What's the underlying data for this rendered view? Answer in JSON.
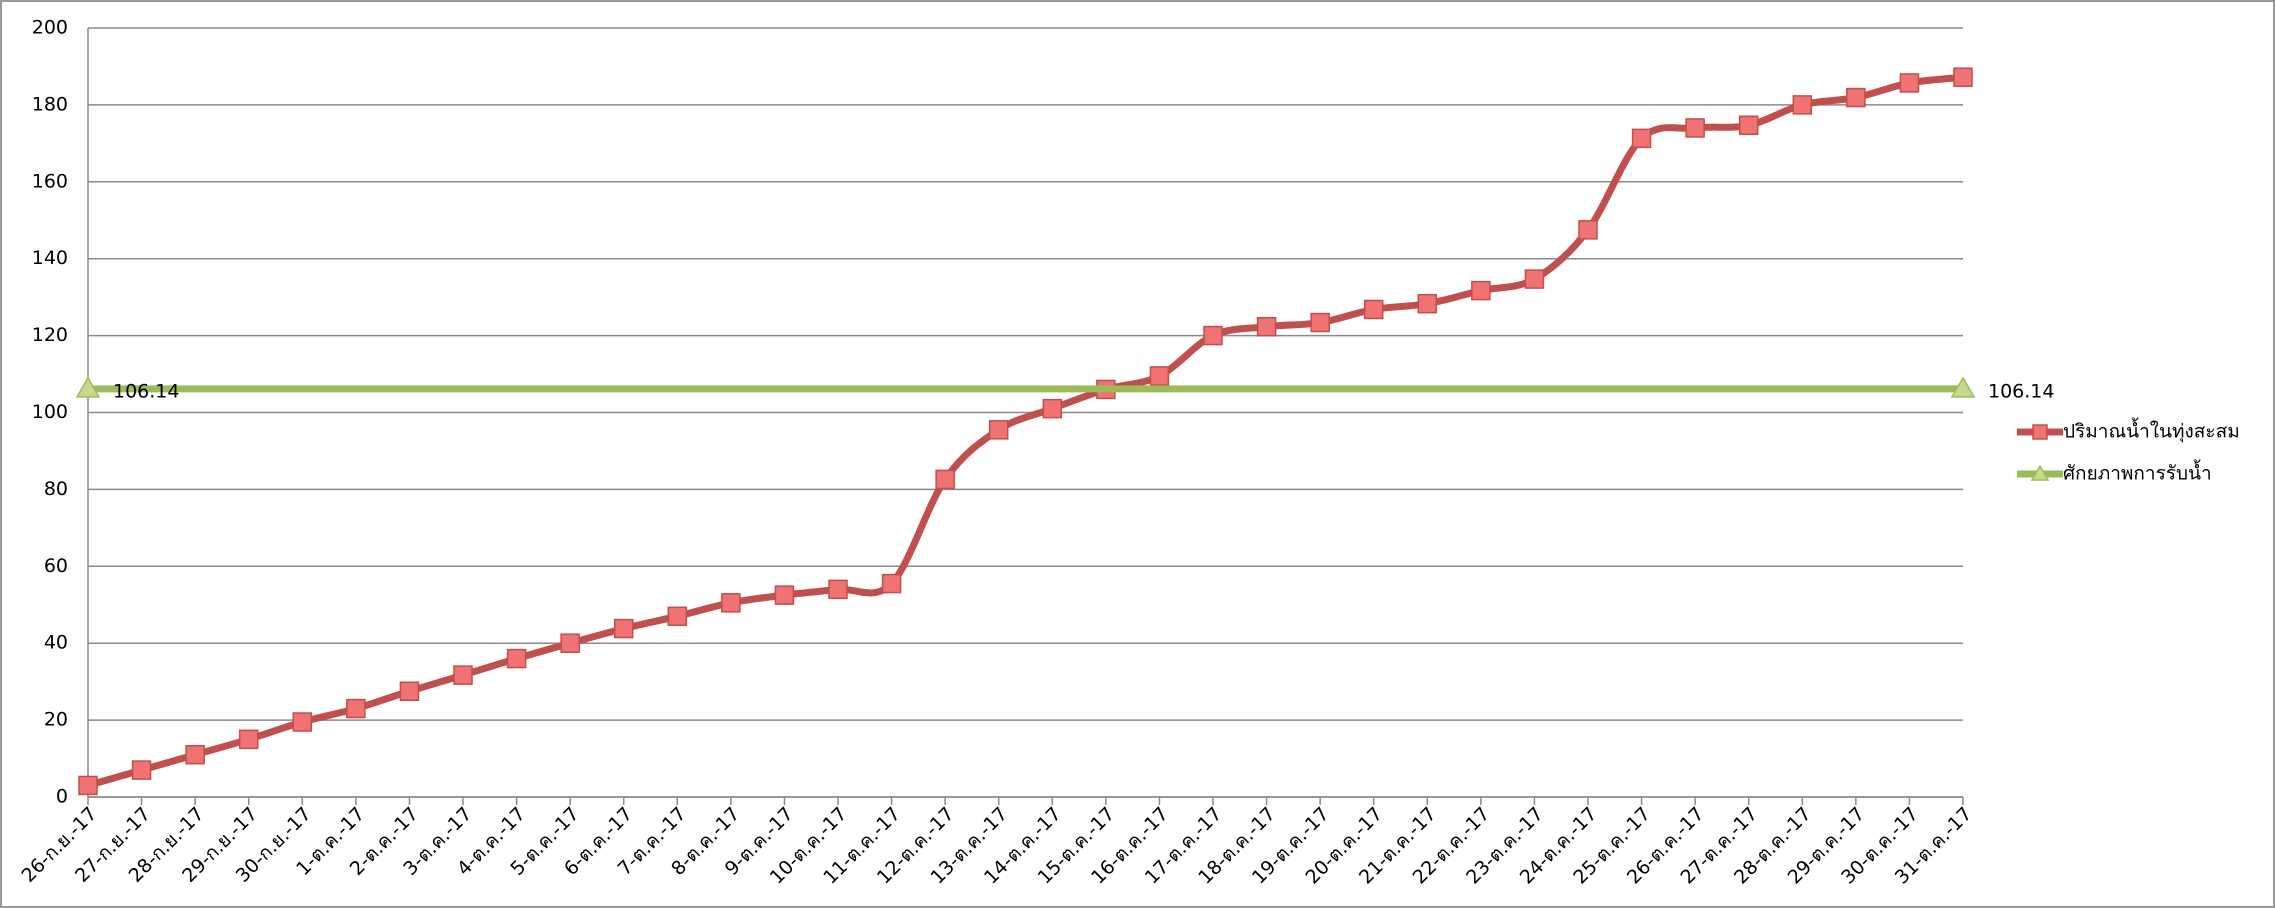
{
  "chart_data": {
    "type": "line",
    "categories": [
      "26-ก.ย.-17",
      "27-ก.ย.-17",
      "28-ก.ย.-17",
      "29-ก.ย.-17",
      "30-ก.ย.-17",
      "1-ต.ค.-17",
      "2-ต.ค.-17",
      "3-ต.ค.-17",
      "4-ต.ค.-17",
      "5-ต.ค.-17",
      "6-ต.ค.-17",
      "7-ต.ค.-17",
      "8-ต.ค.-17",
      "9-ต.ค.-17",
      "10-ต.ค.-17",
      "11-ต.ค.-17",
      "12-ต.ค.-17",
      "13-ต.ค.-17",
      "14-ต.ค.-17",
      "15-ต.ค.-17",
      "16-ต.ค.-17",
      "17-ต.ค.-17",
      "18-ต.ค.-17",
      "19-ต.ค.-17",
      "20-ต.ค.-17",
      "21-ต.ค.-17",
      "22-ต.ค.-17",
      "23-ต.ค.-17",
      "24-ต.ค.-17",
      "25-ต.ค.-17",
      "26-ต.ค.-17",
      "27-ต.ค.-17",
      "28-ต.ค.-17",
      "29-ต.ค.-17",
      "30-ต.ค.-17",
      "31-ต.ค.-17"
    ],
    "series": [
      {
        "name": "ปริมาณน้ำในทุ่งสะสม",
        "color": "#c0504d",
        "marker": "square",
        "values": [
          3,
          7,
          11,
          15,
          19.5,
          23,
          27.5,
          31.7,
          36,
          40,
          43.8,
          47,
          50.5,
          52.5,
          54,
          55.5,
          82.6,
          95.5,
          101,
          106,
          109.5,
          120,
          122.3,
          123.4,
          126.8,
          128.3,
          131.7,
          134.7,
          147.5,
          171.3,
          174,
          174.7,
          180,
          181.9,
          185.7,
          187.2
        ]
      },
      {
        "name": "ศักยภาพการรับน้ำ",
        "color": "#9bbb59",
        "marker": "triangle",
        "values": [
          106.14,
          106.14,
          106.14,
          106.14,
          106.14,
          106.14,
          106.14,
          106.14,
          106.14,
          106.14,
          106.14,
          106.14,
          106.14,
          106.14,
          106.14,
          106.14,
          106.14,
          106.14,
          106.14,
          106.14,
          106.14,
          106.14,
          106.14,
          106.14,
          106.14,
          106.14,
          106.14,
          106.14,
          106.14,
          106.14,
          106.14,
          106.14,
          106.14,
          106.14,
          106.14,
          106.14
        ]
      }
    ],
    "ylim": [
      0,
      200
    ],
    "yticks": [
      0,
      20,
      40,
      60,
      80,
      100,
      120,
      140,
      160,
      180,
      200
    ],
    "grid": true,
    "legend": "right"
  }
}
